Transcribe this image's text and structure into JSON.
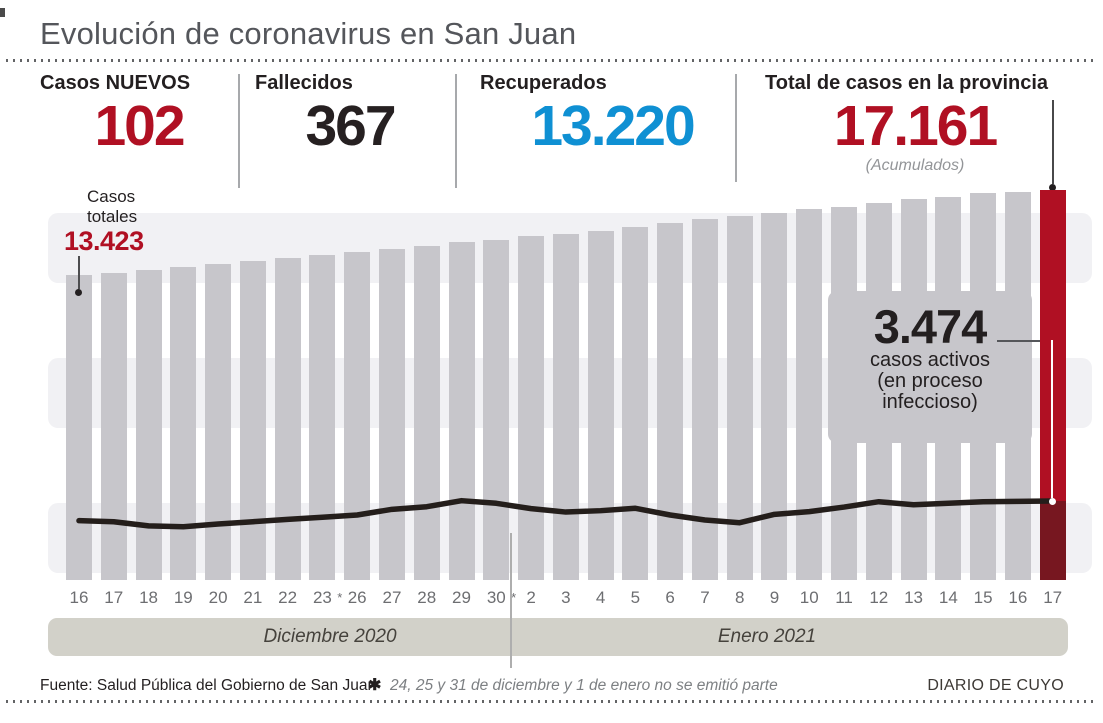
{
  "title": "Evolución de coronavirus en San Juan",
  "stats": [
    {
      "label": "Casos NUEVOS",
      "value": "102",
      "color": "red"
    },
    {
      "label": "Fallecidos",
      "value": "367",
      "color": "black"
    },
    {
      "label": "Recuperados",
      "value": "13.220",
      "color": "blue"
    },
    {
      "label": "Total de casos en la provincia",
      "value": "17.161",
      "note": "(Acumulados)",
      "color": "red"
    }
  ],
  "annotations": {
    "first_bar": {
      "label_line1": "Casos",
      "label_line2": "totales",
      "value": "13.423"
    },
    "active": {
      "value": "3.474",
      "caption1": "casos activos",
      "caption2": "(en proceso",
      "caption3": "infeccioso)"
    }
  },
  "chart_data": {
    "type": "bar",
    "title": "Evolución de coronavirus en San Juan",
    "categories": [
      "16",
      "17",
      "18",
      "19",
      "20",
      "21",
      "22",
      "23",
      "26",
      "27",
      "28",
      "29",
      "30",
      "2",
      "3",
      "4",
      "5",
      "6",
      "7",
      "8",
      "9",
      "10",
      "11",
      "12",
      "13",
      "14",
      "15",
      "16",
      "17"
    ],
    "month_groups": [
      {
        "label": "Diciembre 2020",
        "from": 0,
        "to": 12
      },
      {
        "label": "Enero 2021",
        "from": 13,
        "to": 28
      }
    ],
    "gap_markers": [
      {
        "after_index": 7,
        "symbol": "*"
      },
      {
        "after_index": 12,
        "symbol": "*"
      }
    ],
    "series": [
      {
        "name": "Casos totales (acumulados)",
        "type": "bar",
        "values": [
          13423,
          13530,
          13645,
          13765,
          13910,
          14015,
          14150,
          14295,
          14430,
          14560,
          14710,
          14860,
          14975,
          15125,
          15240,
          15370,
          15550,
          15710,
          15890,
          16010,
          16155,
          16330,
          16420,
          16600,
          16745,
          16865,
          17010,
          17059,
          17161
        ]
      },
      {
        "name": "Casos activos (en proceso infeccioso)",
        "type": "line",
        "values": [
          2610,
          2565,
          2380,
          2345,
          2465,
          2565,
          2670,
          2760,
          2860,
          3110,
          3225,
          3490,
          3375,
          3140,
          2990,
          3050,
          3155,
          2860,
          2640,
          2520,
          2890,
          3010,
          3210,
          3445,
          3310,
          3375,
          3445,
          3460,
          3474
        ]
      }
    ],
    "highlight_index": 28,
    "ylim": [
      0,
      17161
    ],
    "grid": "off",
    "legend": "none",
    "first_bar_label": "13.423",
    "last_bar_label": "17.161",
    "active_last_label": "3.474"
  },
  "footer": {
    "source": "Fuente: Salud Pública del Gobierno de San Juan",
    "note_symbol": "✱",
    "note": "24, 25 y 31 de diciembre y 1 de enero no se emitió parte",
    "credit": "DIARIO DE CUYO"
  },
  "colors": {
    "accent_red": "#b01023",
    "dark_red": "#771720",
    "accent_blue": "#0f90d3",
    "bar_gray": "#c7c6cb",
    "stripe_gray": "#f1f1f4",
    "band_beige": "#d2d1c9",
    "line_black": "#241e1b",
    "title_gray": "#54565b",
    "tick_gray": "#6d6e71",
    "note_gray": "#939598"
  }
}
